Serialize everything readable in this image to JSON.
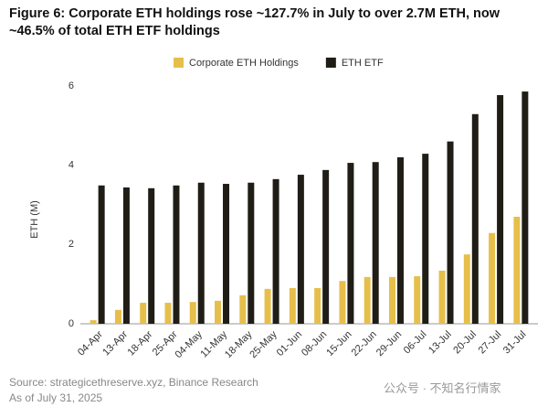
{
  "chart_data": {
    "type": "bar",
    "title": "Figure 6: Corporate ETH holdings rose ~127.7% in July to over 2.7M ETH, now ~46.5% of total ETH ETF holdings",
    "y_label": "ETH (M)",
    "categories": [
      "04-Apr",
      "13-Apr",
      "18-Apr",
      "25-Apr",
      "04-May",
      "11-May",
      "18-May",
      "25-May",
      "01-Jun",
      "08-Jun",
      "15-Jun",
      "22-Jun",
      "29-Jun",
      "06-Jul",
      "13-Jul",
      "20-Jul",
      "27-Jul",
      "31-Jul"
    ],
    "series": [
      {
        "name": "Corporate ETH Holdings",
        "color": "#e6bf4b",
        "values": [
          0.09,
          0.35,
          0.53,
          0.53,
          0.55,
          0.58,
          0.72,
          0.88,
          0.9,
          0.9,
          1.08,
          1.18,
          1.18,
          1.2,
          1.34,
          1.75,
          2.29,
          2.7
        ]
      },
      {
        "name": "ETH ETF",
        "color": "#1f1d16",
        "values": [
          3.49,
          3.44,
          3.42,
          3.49,
          3.56,
          3.53,
          3.56,
          3.65,
          3.76,
          3.88,
          4.06,
          4.08,
          4.2,
          4.29,
          4.6,
          5.29,
          5.77,
          5.86
        ]
      }
    ],
    "ylim": [
      0,
      6
    ],
    "yticks": [
      0,
      2,
      4,
      6
    ],
    "grid": false,
    "legend": "top",
    "source": "Source: strategicethreserve.xyz, Binance Research",
    "date_note": "As of July 31, 2025",
    "watermark": "公众号 · 不知名行情家"
  }
}
